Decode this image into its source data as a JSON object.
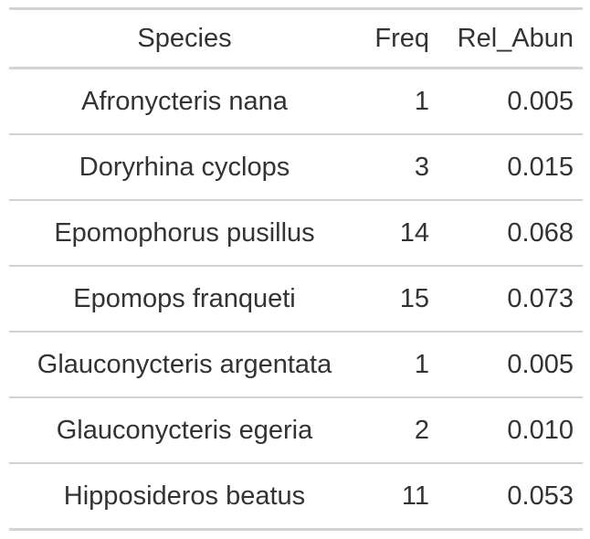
{
  "table": {
    "headers": {
      "species": "Species",
      "freq": "Freq",
      "rel_abun": "Rel_Abun"
    },
    "rows": [
      {
        "species": "Afronycteris nana",
        "freq": "1",
        "rel_abun": "0.005"
      },
      {
        "species": "Doryrhina cyclops",
        "freq": "3",
        "rel_abun": "0.015"
      },
      {
        "species": "Epomophorus pusillus",
        "freq": "14",
        "rel_abun": "0.068"
      },
      {
        "species": "Epomops franqueti",
        "freq": "15",
        "rel_abun": "0.073"
      },
      {
        "species": "Glauconycteris argentata",
        "freq": "1",
        "rel_abun": "0.005"
      },
      {
        "species": "Glauconycteris egeria",
        "freq": "2",
        "rel_abun": "0.010"
      },
      {
        "species": "Hipposideros beatus",
        "freq": "11",
        "rel_abun": "0.053"
      }
    ]
  },
  "colors": {
    "text": "#333333",
    "rule": "#d3d3d3",
    "background": "#ffffff"
  }
}
